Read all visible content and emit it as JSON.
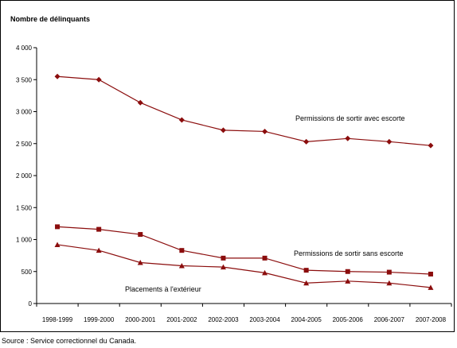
{
  "source_note": "Source : Service correctionnel du Canada.",
  "colors": {
    "series": "#8b0d0d",
    "axis": "#000000"
  },
  "chart_data": {
    "type": "line",
    "ylabel": "Nombre de délinquants",
    "xlabel": "",
    "ylim": [
      0,
      4000
    ],
    "yticks": [
      0,
      500,
      1000,
      1500,
      2000,
      2500,
      3000,
      3500,
      4000
    ],
    "ytick_labels": [
      "0",
      "500",
      "1 000",
      "1 500",
      "2 000",
      "2 500",
      "3 000",
      "3 500",
      "4 000"
    ],
    "categories": [
      "1998-1999",
      "1999-2000",
      "2000-2001",
      "2001-2002",
      "2002-2003",
      "2003-2004",
      "2004-2005",
      "2005-2006",
      "2006-2007",
      "2007-2008"
    ],
    "grid": false,
    "series": [
      {
        "name": "Permissions de sortir avec escorte",
        "marker": "diamond",
        "values": [
          3550,
          3500,
          3140,
          2870,
          2710,
          2690,
          2530,
          2580,
          2530,
          2470
        ]
      },
      {
        "name": "Permissions de sortir sans escorte",
        "marker": "square",
        "values": [
          1200,
          1160,
          1080,
          830,
          710,
          710,
          520,
          500,
          490,
          460
        ]
      },
      {
        "name": "Placements à l'extérieur",
        "marker": "triangle",
        "values": [
          920,
          830,
          640,
          590,
          570,
          480,
          320,
          350,
          320,
          250
        ]
      }
    ]
  }
}
